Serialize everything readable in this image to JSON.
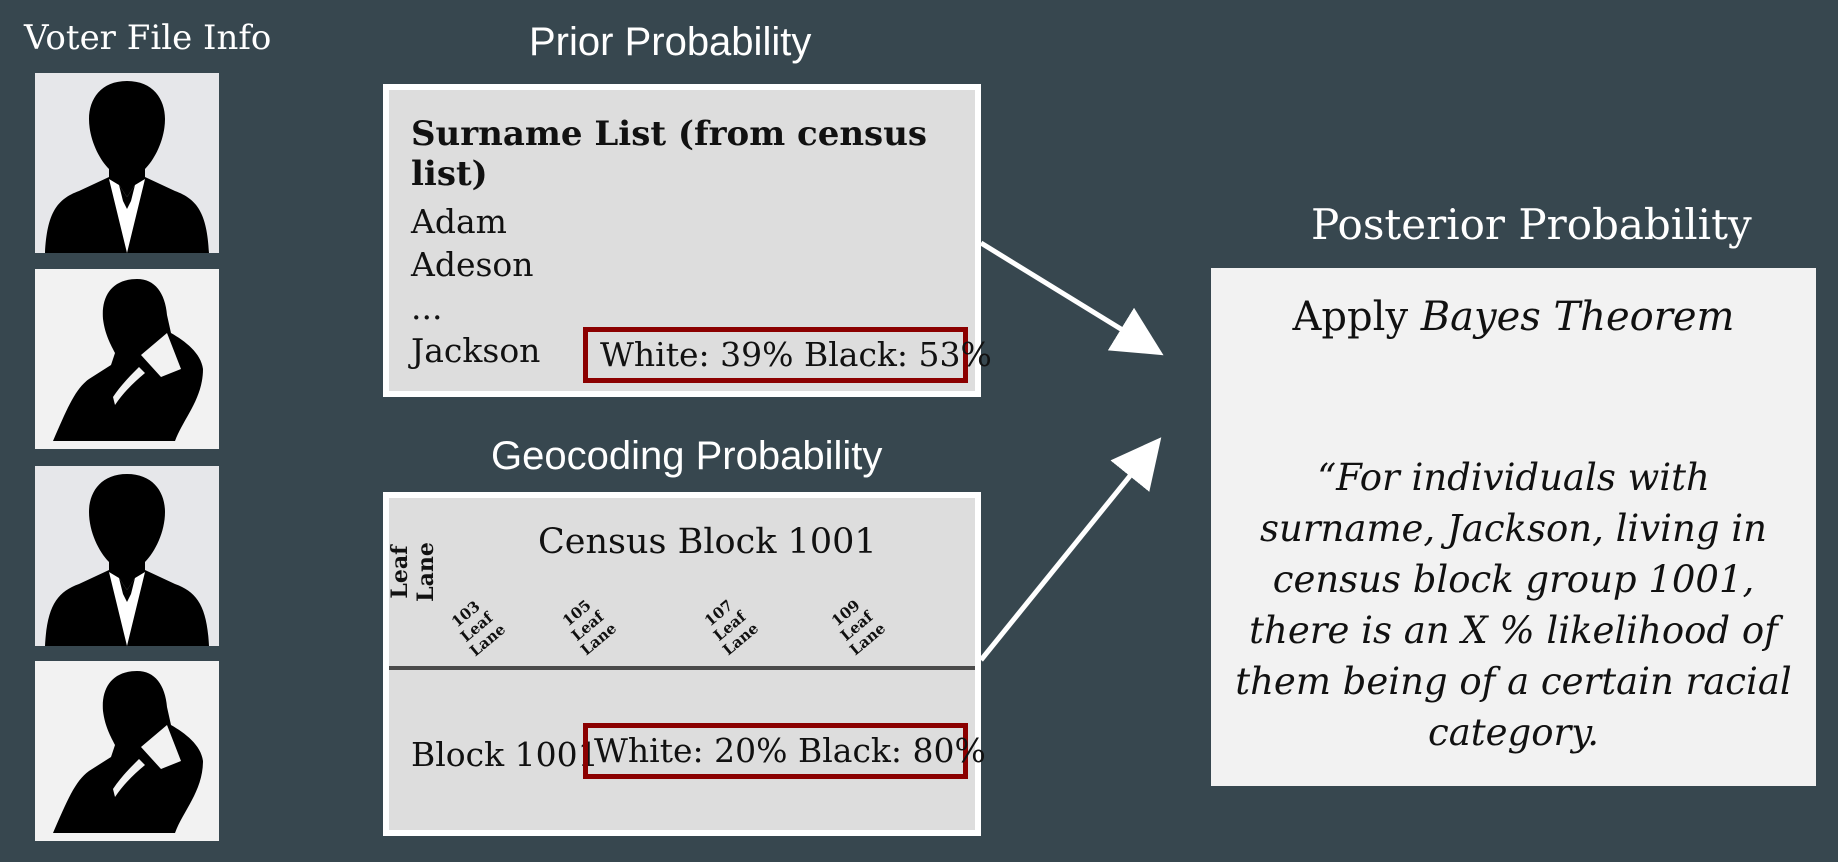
{
  "voter": {
    "title": "Voter File Info",
    "icons": [
      "male-user-icon",
      "female-user-icon",
      "male-user-icon",
      "female-user-icon"
    ]
  },
  "prior": {
    "heading": "Prior Probability",
    "list_title": "Surname List (from census list)",
    "names": [
      "Adam",
      "Adeson",
      "...",
      "Jackson"
    ],
    "highlight": "White: 39% Black: 53%"
  },
  "geo": {
    "heading": "Geocoding Probability",
    "block_title": "Census Block 1001",
    "street": "Leaf Lane",
    "addresses": [
      "103 Leaf Lane",
      "105 Leaf Lane",
      "107 Leaf Lane",
      "109 Leaf Lane"
    ],
    "block_label": "Block 1001",
    "highlight": "White: 20% Black: 80%"
  },
  "posterior": {
    "heading": "Posterior Probability",
    "apply_prefix": "Apply",
    "apply_emphasis": "Bayes Theorem",
    "quote": "“For individuals with surname, Jackson, living in census block group 1001, there is an X % likelihood of them being of a certain racial category."
  },
  "colors": {
    "background": "#37474f",
    "highlight_border": "#8b0000",
    "panel": "#dddddd"
  }
}
